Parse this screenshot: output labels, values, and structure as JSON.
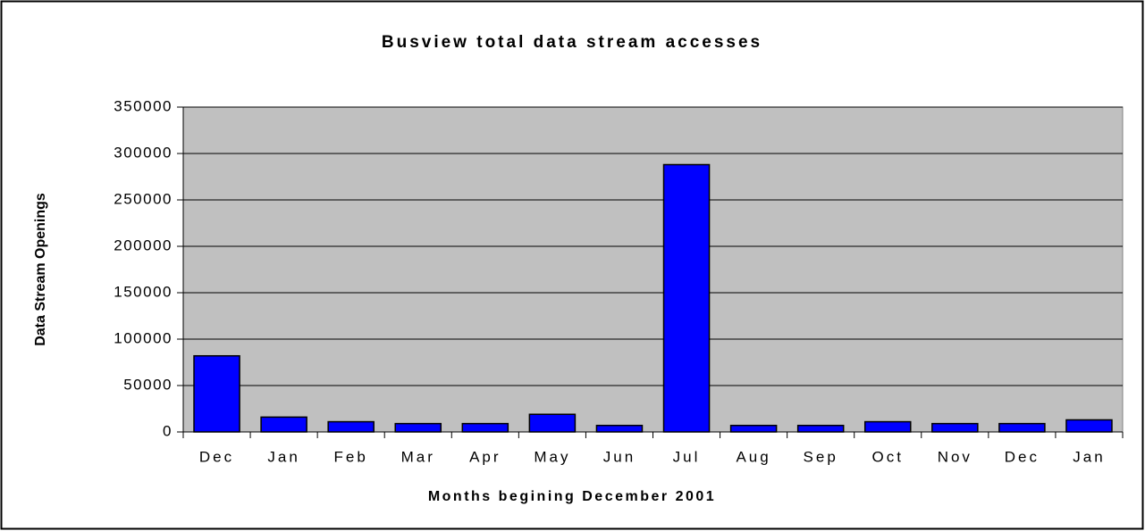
{
  "chart_data": {
    "type": "bar",
    "title": "Busview total data stream accesses",
    "x_label": "Months begining December 2001",
    "y_label": "Data Stream Openings",
    "categories": [
      "Dec",
      "Jan",
      "Feb",
      "Mar",
      "Apr",
      "May",
      "Jun",
      "Jul",
      "Aug",
      "Sep",
      "Oct",
      "Nov",
      "Dec",
      "Jan"
    ],
    "values": [
      82000,
      16000,
      11000,
      9000,
      9000,
      19000,
      7000,
      288000,
      7000,
      7000,
      11000,
      9000,
      9000,
      13000
    ],
    "color": "#0000ff",
    "ylim": [
      0,
      350000
    ],
    "yticks": [
      0,
      50000,
      100000,
      150000,
      200000,
      250000,
      300000,
      350000
    ],
    "grid": true
  }
}
